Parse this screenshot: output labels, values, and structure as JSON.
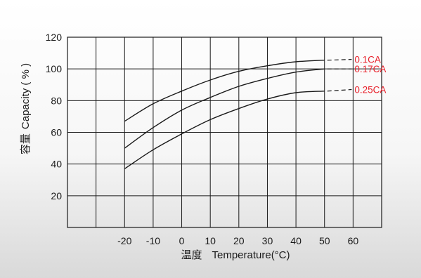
{
  "chart_data": {
    "type": "line",
    "xlabel_cn": "温度",
    "xlabel_en": "Temperature(°C)",
    "ylabel_cn": "容量",
    "ylabel_en": "Capacity ( % )",
    "x_ticks": [
      -20,
      -10,
      0,
      10,
      20,
      30,
      40,
      50,
      60
    ],
    "y_ticks": [
      20,
      40,
      60,
      80,
      100,
      120
    ],
    "xlim": [
      -40,
      70
    ],
    "ylim": [
      0,
      120
    ],
    "grid": true,
    "label_color": "#e8202a",
    "line_color": "#1a1a1a",
    "series": [
      {
        "name": "0.1CA",
        "x": [
          -20,
          -10,
          0,
          10,
          20,
          30,
          40,
          50
        ],
        "y": [
          67,
          78,
          86,
          93,
          98.5,
          102,
          104.5,
          105.5
        ],
        "extension": [
          [
            50,
            105.5
          ],
          [
            60,
            106
          ]
        ]
      },
      {
        "name": "0.17CA",
        "x": [
          -20,
          -10,
          0,
          10,
          20,
          30,
          40,
          50
        ],
        "y": [
          50,
          63,
          74,
          82,
          89,
          94,
          98,
          100
        ],
        "extension": [
          [
            50,
            100
          ],
          [
            60,
            100
          ]
        ]
      },
      {
        "name": "0.25CA",
        "x": [
          -20,
          -10,
          0,
          10,
          20,
          30,
          40,
          50
        ],
        "y": [
          37,
          49,
          59,
          68,
          75,
          81,
          85,
          86
        ],
        "extension": [
          [
            50,
            86
          ],
          [
            60,
            87
          ]
        ]
      }
    ]
  }
}
